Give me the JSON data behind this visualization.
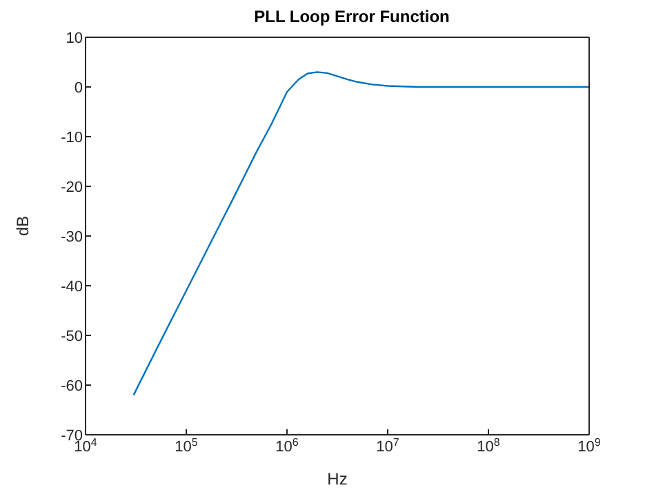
{
  "chart_data": {
    "type": "line",
    "title": "PLL Loop Error Function",
    "xlabel": "Hz",
    "ylabel": "dB",
    "log": "x",
    "grid": false,
    "marker": "none",
    "line_style": "solid",
    "x": [
      30000,
      50000,
      100000,
      200000,
      300000,
      500000,
      700000,
      1000000,
      1300000,
      1600000,
      2000000,
      2500000,
      3000000,
      4000000,
      5000000,
      7000000,
      10000000,
      20000000,
      100000000,
      1000000000
    ],
    "series": [
      {
        "color": "#0072bd",
        "values": [
          -62,
          -53,
          -41,
          -29,
          -22,
          -13,
          -7.5,
          -1,
          1.5,
          2.7,
          3,
          2.8,
          2.3,
          1.5,
          1,
          0.5,
          0.2,
          0,
          0,
          0
        ]
      }
    ],
    "xlim": [
      10000,
      1000000000
    ],
    "xticks": [
      {
        "value": 10000,
        "label": "10$^{4}$"
      },
      {
        "value": 100000,
        "label": "10$^{5}$"
      },
      {
        "value": 1000000,
        "label": "10$^{6}$"
      },
      {
        "value": 10000000,
        "label": "10$^{7}$"
      },
      {
        "value": 100000000,
        "label": "10$^{8}$"
      },
      {
        "value": 1000000000,
        "label": "10$^{9}$"
      }
    ],
    "ylim": [
      -70,
      10
    ],
    "yticks": [
      -70,
      -60,
      -50,
      -40,
      -30,
      -20,
      -10,
      0,
      10
    ]
  }
}
